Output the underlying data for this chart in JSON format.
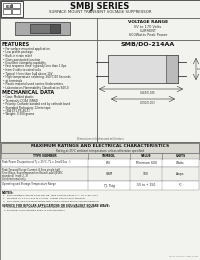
{
  "title": "SMBJ SERIES",
  "subtitle": "SURFACE MOUNT TRANSIENT VOLTAGE SUPPRESSOR",
  "voltage_range_title": "VOLTAGE RANGE",
  "voltage_range_line1": "5V to 170 Volts",
  "voltage_range_line2": "CURRENT",
  "voltage_range_line3": "600Watts Peak Power",
  "package_name": "SMB/DO-214AA",
  "features_title": "FEATURES",
  "features": [
    "For surface mounted application",
    "Low profile package",
    "Built-in strain relief",
    "Glass passivated junction",
    "Excellent clamping capability",
    "Fast response time: typically less than 1.0ps",
    "from 0 volts to rated volts",
    "Typical Ir less than 1uA above 10V",
    "High temperature soldering: 260°C/10 Seconds",
    "at terminals",
    "Plastic material used carries Underwriters",
    "Laboratories Flammability Classification 94V-0"
  ],
  "mechanical_title": "MECHANICAL DATA",
  "mechanical": [
    "Case: Molded plastic",
    "Terminals: DO94 (SN60)",
    "Polarity: Cathode banded end by cathode band",
    "Standard Packaging: 12mm tape",
    "(EIA 471-PS-46-1)",
    "Weight: 0.360 grams"
  ],
  "table_title": "MAXIMUM RATINGS AND ELECTRICAL CHARACTERISTICS",
  "table_subtitle": "Rating at 25°C ambient temperature unless otherwise specified",
  "col_headers": [
    "TYPE NUMBER",
    "SYMBOL",
    "VALUE",
    "UNITS"
  ],
  "rows": [
    {
      "desc": "Peak Power Dissipation at Tj = 25°C, TL = 1ms/10us  ©",
      "symbol": "PPk",
      "value": "Minimum 600",
      "units": "Watts"
    },
    {
      "desc": "Peak Forward Surge Current, 8.3ms single half\nSine-Wave, Superimposed on Rated Load (JEDEC\nstandard) (note 2, 3)\nUnidirectional only",
      "symbol": "IFSM",
      "value": "100",
      "units": "Amps"
    },
    {
      "desc": "Operating and Storage Temperature Range",
      "symbol": "TJ, Tstg",
      "value": "-55 to + 150",
      "units": "°C"
    }
  ],
  "notes_title": "NOTES:",
  "notes": [
    "1.  Non-repetitive current pulse per Fig. (and derated above Tj = 25°C per Fig 2",
    "2.  Mounted on 1.6 x 0.375 to 0.3 mm² copper pads to both terminal.",
    "3.  1ms surge half sine wave within duty cycle:2 pulses per 60 second minimum"
  ],
  "service_text": "SERVICE FOR BIPOLAR APPLICATIONS OR EQUIVALENT SQUARE WAVE:",
  "service_notes": [
    "1. The bidirectional type of 5V SMBJ for series SMBJ11 through rated SMBJC",
    "2. Electrical characteristics apply in both directions"
  ],
  "copyright": "semiconductor data sheet",
  "bg_color": "#f2f2ee",
  "white": "#ffffff",
  "border_color": "#555555",
  "dark": "#222222",
  "mid": "#888888",
  "header_gray": "#e0e0d8"
}
